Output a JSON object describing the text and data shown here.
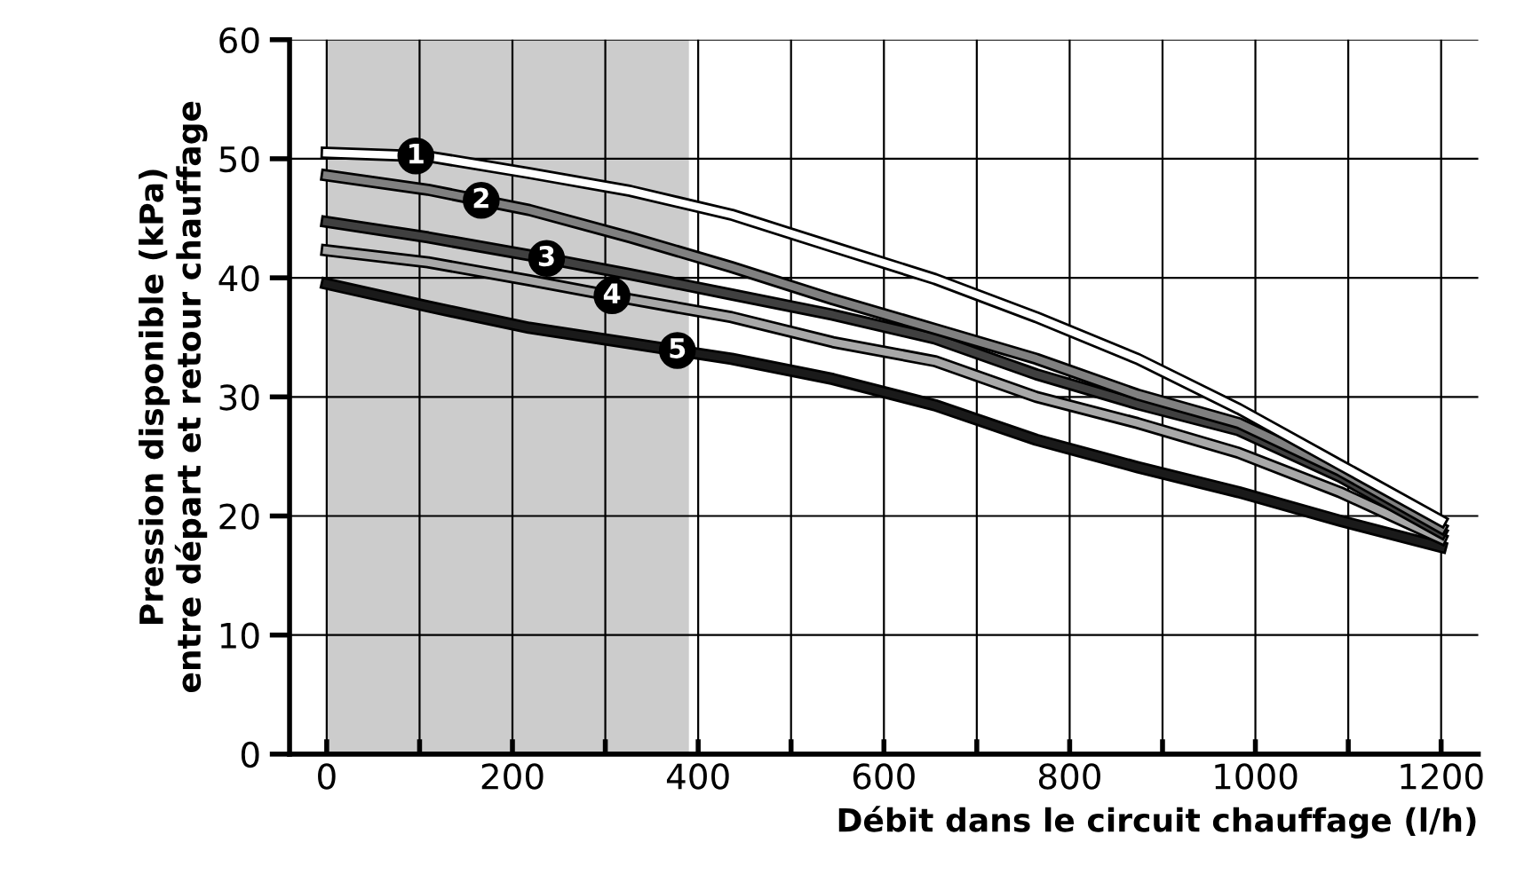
{
  "chart_data": {
    "type": "line",
    "xlabel": "Débit dans le circuit chauffage (l/h)",
    "ylabel": "Pression disponible (kPa)\nentre départ et retour chauffage",
    "x": [
      0,
      109,
      218,
      327,
      436,
      545,
      655,
      764,
      873,
      982,
      1091,
      1200
    ],
    "series": [
      {
        "name": "1",
        "color": "#ffffff",
        "values": [
          50.5,
          50.2,
          48.8,
          47.3,
          45.3,
          42.6,
          39.9,
          36.7,
          33.2,
          29.0,
          24.3,
          19.6
        ]
      },
      {
        "name": "2",
        "color": "#808080",
        "values": [
          48.6,
          47.4,
          45.7,
          43.4,
          40.9,
          38.2,
          35.7,
          33.2,
          30.2,
          27.8,
          23.8,
          19.0
        ]
      },
      {
        "name": "3",
        "color": "#404040",
        "values": [
          44.7,
          43.4,
          41.9,
          40.3,
          38.6,
          36.9,
          34.9,
          31.9,
          29.4,
          27.2,
          23.3,
          18.6
        ]
      },
      {
        "name": "4",
        "color": "#a8a8a8",
        "values": [
          42.3,
          41.3,
          39.8,
          38.2,
          36.7,
          34.6,
          33.0,
          30.0,
          27.8,
          25.3,
          22.0,
          18.1
        ]
      },
      {
        "name": "5",
        "color": "#1a1a1a",
        "values": [
          39.5,
          37.6,
          35.8,
          34.5,
          33.2,
          31.5,
          29.3,
          26.4,
          24.1,
          22.0,
          19.6,
          17.4
        ]
      }
    ],
    "xlim": [
      -40,
      1240
    ],
    "ylim": [
      0,
      60
    ],
    "xticks": [
      0,
      {
        "value": 100,
        "label": null
      },
      200,
      {
        "value": 300,
        "label": null
      },
      400,
      {
        "value": 500,
        "label": null
      },
      600,
      {
        "value": 700,
        "label": null
      },
      800,
      {
        "value": 900,
        "label": null
      },
      1000,
      {
        "value": 1100,
        "label": null
      },
      1200
    ],
    "yticks": [
      0,
      10,
      20,
      30,
      40,
      50,
      60
    ],
    "bands": [
      {
        "axis": "x",
        "from": 0,
        "to": 390,
        "color": "#cccccc"
      }
    ],
    "grid": true,
    "legend": false,
    "marker": "none",
    "line_style": "solid"
  }
}
